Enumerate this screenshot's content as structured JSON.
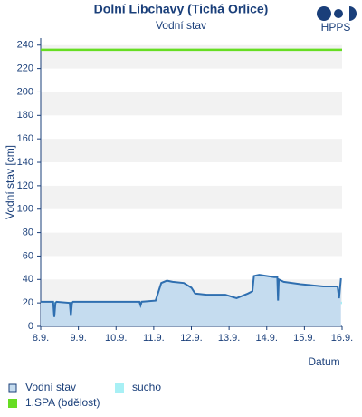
{
  "chart_data": {
    "type": "area",
    "title": "Dolní Libchavy (Tichá Orlice)",
    "subtitle": "Vodní stav",
    "logo": "HPPS",
    "x_label": "Datum",
    "y_label": "Vodní stav [cm]",
    "xlim": [
      8,
      16
    ],
    "xticks": [
      {
        "value": 8,
        "label": "8.9."
      },
      {
        "value": 9,
        "label": "9.9."
      },
      {
        "value": 10,
        "label": "10.9."
      },
      {
        "value": 11,
        "label": "11.9."
      },
      {
        "value": 12,
        "label": "12.9."
      },
      {
        "value": 13,
        "label": "13.9."
      },
      {
        "value": 14,
        "label": "14.9."
      },
      {
        "value": 15,
        "label": "15.9."
      },
      {
        "value": 16,
        "label": "16.9."
      }
    ],
    "ylim": [
      0,
      246
    ],
    "yticks": [
      0,
      20,
      40,
      60,
      80,
      100,
      120,
      140,
      160,
      180,
      200,
      220,
      240
    ],
    "grid": true,
    "series": [
      {
        "name": "Vodní stav",
        "color": "#2f6fb0",
        "fill": "#c5dcef",
        "x": [
          8,
          8.33,
          8.36,
          8.39,
          8.42,
          8.77,
          8.8,
          8.83,
          8.86,
          9.5,
          10.62,
          10.65,
          10.68,
          11.05,
          11.2,
          11.35,
          11.5,
          11.8,
          12.0,
          12.1,
          12.4,
          12.9,
          13.2,
          13.5,
          13.62,
          13.66,
          13.8,
          14.2,
          14.28,
          14.3,
          14.32,
          14.45,
          14.9,
          15.2,
          15.5,
          15.88,
          15.92,
          15.97
        ],
        "values": [
          21,
          21,
          8,
          20,
          21,
          20,
          9,
          20,
          21,
          21,
          21,
          18,
          21,
          22,
          37,
          39,
          38,
          37,
          33,
          28,
          27,
          27,
          24,
          28,
          30,
          43,
          44,
          42,
          42,
          22,
          40,
          38,
          36,
          35,
          34,
          34,
          24,
          41
        ]
      },
      {
        "name": "sucho",
        "color": "#a8f0f5",
        "x": [
          8,
          16
        ],
        "values": [
          20,
          20
        ]
      },
      {
        "name": "1.SPA (bdělost)",
        "color": "#66dd22",
        "x": [
          8,
          16
        ],
        "values": [
          236,
          236
        ]
      }
    ]
  }
}
